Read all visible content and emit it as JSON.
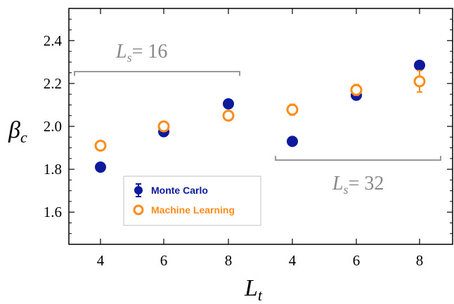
{
  "chart_data": {
    "type": "scatter",
    "xlabel": {
      "main": "L",
      "sub": "t"
    },
    "ylabel": {
      "main": "β",
      "sub": "c"
    },
    "ylim": [
      1.45,
      2.55
    ],
    "yticks": [
      "1.6",
      "1.8",
      "2.0",
      "2.2",
      "2.4"
    ],
    "xticks": [
      "4",
      "6",
      "8",
      "4",
      "6",
      "8"
    ],
    "groups": [
      {
        "label_main": "L",
        "label_sub": "s",
        "label_rest": "= 16"
      },
      {
        "label_main": "L",
        "label_sub": "s",
        "label_rest": "= 32"
      }
    ],
    "series": [
      {
        "name": "Monte Carlo",
        "color": "#0d1a9c",
        "marker": "filled-circle",
        "points": [
          {
            "x": 0,
            "y": 1.81,
            "err": 0.0
          },
          {
            "x": 1,
            "y": 1.975,
            "err": 0.0
          },
          {
            "x": 2,
            "y": 2.105,
            "err": 0.0
          },
          {
            "x": 3,
            "y": 1.93,
            "err": 0.0
          },
          {
            "x": 4,
            "y": 2.145,
            "err": 0.0
          },
          {
            "x": 5,
            "y": 2.285,
            "err": 0.0
          }
        ]
      },
      {
        "name": "Machine Learning",
        "color": "#ff8c1a",
        "marker": "open-circle",
        "points": [
          {
            "x": 0,
            "y": 1.91,
            "err": 0.01
          },
          {
            "x": 1,
            "y": 2.0,
            "err": 0.01
          },
          {
            "x": 2,
            "y": 2.05,
            "err": 0.01
          },
          {
            "x": 3,
            "y": 2.078,
            "err": 0.025
          },
          {
            "x": 4,
            "y": 2.17,
            "err": 0.025
          },
          {
            "x": 5,
            "y": 2.21,
            "err": 0.05
          }
        ]
      }
    ],
    "legend": {
      "placement": "bottom-left"
    },
    "grid": false
  }
}
